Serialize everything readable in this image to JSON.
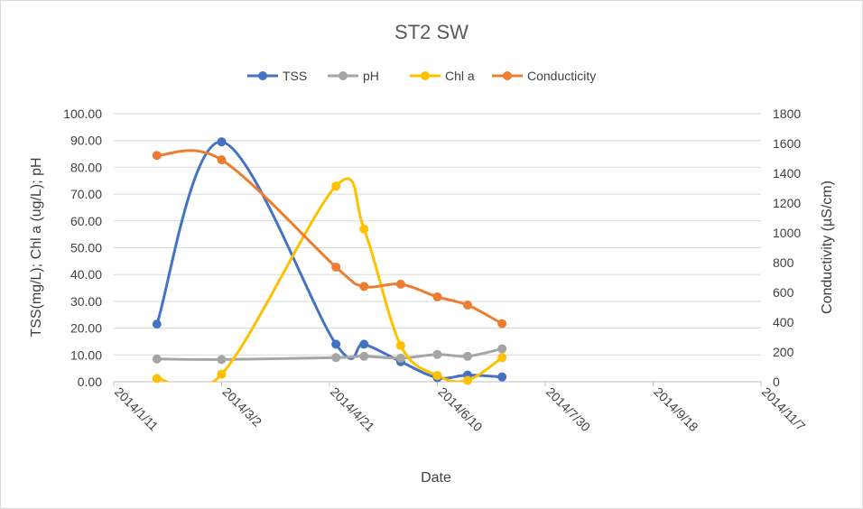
{
  "chart_data": {
    "type": "line",
    "title": "ST2 SW",
    "xlabel": "Date",
    "ylabel": "TSS(mg/L); Chl a (ug/L); pH",
    "y2label": "Conductivity  (µS/cm)",
    "xlim": [
      "2014/1/11",
      "2014/11/7"
    ],
    "ylim": [
      0,
      100
    ],
    "y2lim": [
      0,
      1800
    ],
    "x_ticks": [
      "2014/1/11",
      "2014/3/2",
      "2014/4/21",
      "2014/6/10",
      "2014/7/30",
      "2014/9/18",
      "2014/11/7"
    ],
    "y_ticks": [
      "0.00",
      "10.00",
      "20.00",
      "30.00",
      "40.00",
      "50.00",
      "60.00",
      "70.00",
      "80.00",
      "90.00",
      "100.00"
    ],
    "y2_ticks": [
      "0",
      "200",
      "400",
      "600",
      "800",
      "1000",
      "1200",
      "1400",
      "1600",
      "1800"
    ],
    "grid": "horizontal",
    "legend": "top",
    "smooth": true,
    "series": [
      {
        "name": "TSS",
        "axis": "left",
        "color": "#4472C4",
        "x": [
          "2014/1/31",
          "2014/3/2",
          "2014/4/24",
          "2014/5/7",
          "2014/5/24",
          "2014/6/10",
          "2014/6/24",
          "2014/7/10"
        ],
        "y": [
          21.5,
          89.5,
          14.0,
          14.0,
          7.5,
          1.5,
          2.5,
          1.8
        ]
      },
      {
        "name": "pH",
        "axis": "left",
        "color": "#A5A5A5",
        "x": [
          "2014/1/31",
          "2014/3/2",
          "2014/4/24",
          "2014/5/7",
          "2014/5/24",
          "2014/6/10",
          "2014/6/24",
          "2014/7/10"
        ],
        "y": [
          8.5,
          8.3,
          9.0,
          9.5,
          8.8,
          10.2,
          9.5,
          12.3
        ]
      },
      {
        "name": "Chl a",
        "axis": "left",
        "color": "#FFC000",
        "x": [
          "2014/1/31",
          "2014/3/2",
          "2014/4/24",
          "2014/5/7",
          "2014/5/24",
          "2014/6/10",
          "2014/6/24",
          "2014/7/10"
        ],
        "y": [
          1.2,
          2.8,
          73.0,
          57.0,
          13.5,
          2.3,
          0.5,
          9.0
        ]
      },
      {
        "name": "Conducticity",
        "axis": "right",
        "color": "#ED7D31",
        "x": [
          "2014/1/31",
          "2014/3/2",
          "2014/4/24",
          "2014/5/7",
          "2014/5/24",
          "2014/6/10",
          "2014/6/24",
          "2014/7/10"
        ],
        "y": [
          1520,
          1490,
          770,
          640,
          655,
          570,
          515,
          390
        ]
      }
    ]
  }
}
